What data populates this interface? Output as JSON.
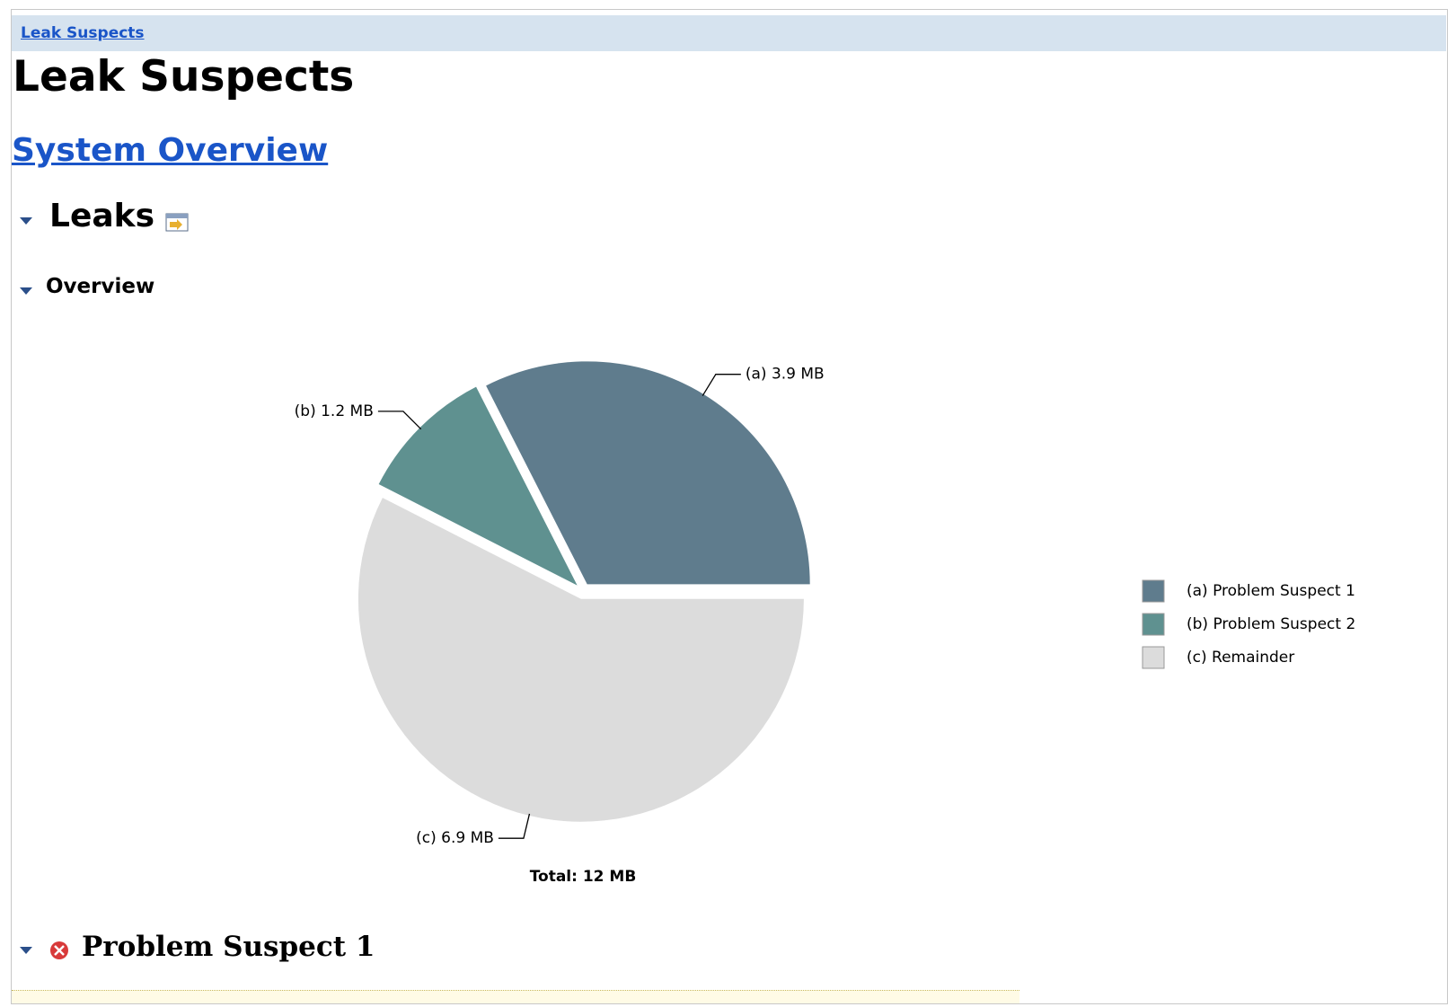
{
  "header": {
    "breadcrumb": "Leak Suspects",
    "title": "Leak Suspects",
    "overview_link": "System Overview"
  },
  "sections": {
    "leaks": "Leaks",
    "overview": "Overview",
    "problem_suspect": "Problem Suspect 1"
  },
  "chart_data": {
    "type": "pie",
    "categories": [
      "(a)  Problem Suspect 1",
      "(b)  Problem Suspect 2",
      "(c)  Remainder"
    ],
    "values": [
      3.9,
      1.2,
      6.9
    ],
    "value_labels": [
      "(a)  3.9 MB",
      "(b)  1.2 MB",
      "(c)  6.9 MB"
    ],
    "colors": [
      "#5f7c8d",
      "#5f9190",
      "#dcdcdc"
    ],
    "total": "Total: 12 MB",
    "legend": "right"
  }
}
